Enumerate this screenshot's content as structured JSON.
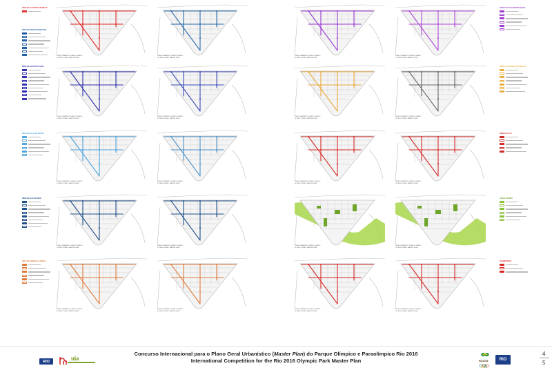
{
  "legends": [
    {
      "id": "l1",
      "title": "REDE DE GALERIAS TÉCNICAS",
      "color": "#e03030",
      "rows": 1
    },
    {
      "id": "l2",
      "title": "REDE DE ESGOTO SANITÁRIO",
      "color": "#1e5fa8",
      "rows": 7
    },
    {
      "id": "l3",
      "title": "REDE DE ÁGUAS PLUVIAIS",
      "color": "#3030b0",
      "rows": 9
    },
    {
      "id": "l4",
      "title": "REDE DE ÁGUA DE REÚSO",
      "color": "#4ea6de",
      "rows": 6
    },
    {
      "id": "l5",
      "title": "REDE DE GÁS NATURAL",
      "color": "#1f4f8a",
      "rows": 8
    },
    {
      "id": "l6",
      "title": "REDE DE ENERGIA ELÉTRICA",
      "color": "#e07a3a",
      "rows": 6
    },
    {
      "id": "l7",
      "title": "REDE DE TELECOMUNICAÇÕES",
      "color": "#a040d0",
      "rows": 6
    },
    {
      "id": "l8",
      "title": "REDE DE ILUMINAÇÃO PÚBLICA",
      "color": "#e8b040",
      "rows": 7
    },
    {
      "id": "l9",
      "title": "REDE DE CCTV",
      "color": "#d02a2a",
      "rows": 5
    },
    {
      "id": "l10",
      "title": "ÁREAS VERDES",
      "color": "#8ac23a",
      "rows": 6
    },
    {
      "id": "l11",
      "title": "TRANSPORTE",
      "color": "#d82828",
      "rows": 3
    }
  ],
  "plan_caption_line1": "PLANO URBANÍSTICO ANEXO LEGADO",
  "plan_caption_line2": "OLYMPIC LEGACY MASTER PLAN",
  "plans": [
    {
      "id": "p-a1",
      "color": "#e02828"
    },
    {
      "id": "p-a2",
      "color": "#2a6aa8"
    },
    {
      "id": "p-a3",
      "color": "#9a3ad0"
    },
    {
      "id": "p-a4",
      "color": "#b04ad8"
    },
    {
      "id": "p-b1",
      "color": "#2e2ea8"
    },
    {
      "id": "p-b2",
      "color": "#3a4ab8"
    },
    {
      "id": "p-b3",
      "color": "#e8a838"
    },
    {
      "id": "p-b4",
      "color": "#666666"
    },
    {
      "id": "p-c1",
      "color": "#4aa0de"
    },
    {
      "id": "p-c2",
      "color": "#4a90c8"
    },
    {
      "id": "p-c3",
      "color": "#d42828"
    },
    {
      "id": "p-c4",
      "color": "#d42828"
    },
    {
      "id": "p-d1",
      "color": "#1f4f8a"
    },
    {
      "id": "p-d2",
      "color": "#1f4f8a"
    },
    {
      "id": "p-d3",
      "color": "#8ac23a"
    },
    {
      "id": "p-d4",
      "color": "#8ac23a"
    },
    {
      "id": "p-e1",
      "color": "#e07a3a"
    },
    {
      "id": "p-e2",
      "color": "#e07a3a"
    },
    {
      "id": "p-e3",
      "color": "#d42828"
    },
    {
      "id": "p-e4",
      "color": "#d42828"
    }
  ],
  "footer": {
    "title_pt_a": "Concurso Internacional para o Plano Geral Urbanístico (",
    "title_pt_em": "Master Plan",
    "title_pt_b": ") do Parque Olímpico e Paraolímpico Rio 2016",
    "title_en": "International Competition for the Rio 2016 Olympic Park Master Plan"
  },
  "logos": {
    "rio_left": "RIO",
    "uia": "uia",
    "rio2016": "Rio2016",
    "rio_right": "RIO"
  },
  "pages": {
    "current": "4",
    "total": "5"
  },
  "colors": {
    "land": "#f4f4f4",
    "outline": "#bdbdbd",
    "green": "#a8d64a",
    "green_dark": "#6fa52a"
  }
}
